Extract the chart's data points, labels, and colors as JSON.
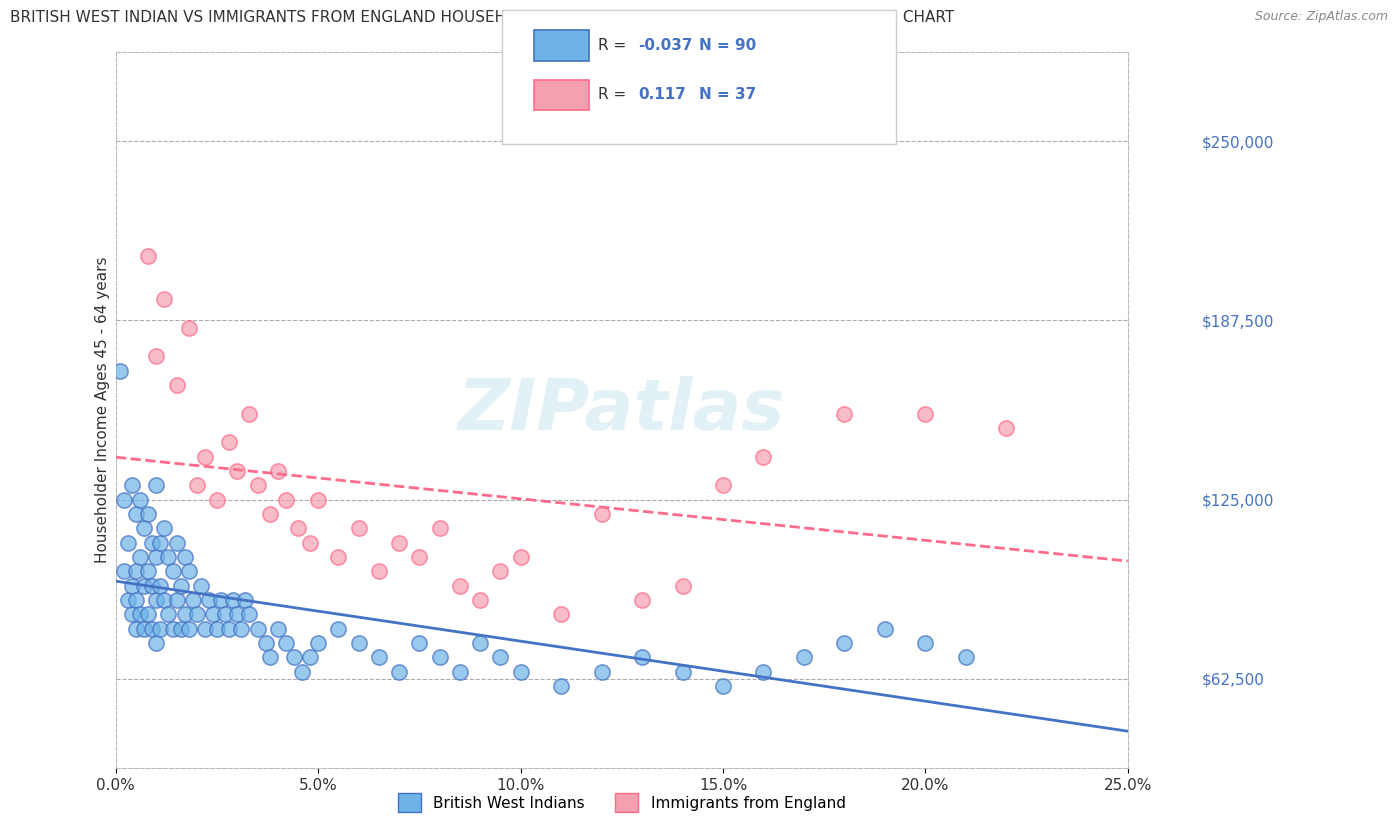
{
  "title": "BRITISH WEST INDIAN VS IMMIGRANTS FROM ENGLAND HOUSEHOLDER INCOME AGES 45 - 64 YEARS CORRELATION CHART",
  "source": "Source: ZipAtlas.com",
  "xlabel": "",
  "ylabel": "Householder Income Ages 45 - 64 years",
  "xlim": [
    0.0,
    0.25
  ],
  "ylim": [
    31250,
    281250
  ],
  "yticks": [
    62500,
    125000,
    187500,
    250000
  ],
  "ytick_labels": [
    "$62,500",
    "$125,000",
    "$187,500",
    "$250,000"
  ],
  "xticks": [
    0.0,
    0.05,
    0.1,
    0.15,
    0.2,
    0.25
  ],
  "xtick_labels": [
    "0.0%",
    "5.0%",
    "10.0%",
    "15.0%",
    "20.0%",
    "25.0%"
  ],
  "blue_R": -0.037,
  "blue_N": 90,
  "pink_R": 0.117,
  "pink_N": 37,
  "blue_color": "#6EB4E8",
  "pink_color": "#F4A0B0",
  "blue_line_color": "#4472C4",
  "pink_line_color": "#FF6B8A",
  "background_color": "#FFFFFF",
  "watermark": "ZIPatlas",
  "legend_label_blue": "British West Indians",
  "legend_label_pink": "Immigrants from England",
  "blue_scatter_x": [
    0.001,
    0.002,
    0.002,
    0.003,
    0.003,
    0.004,
    0.004,
    0.004,
    0.005,
    0.005,
    0.005,
    0.005,
    0.006,
    0.006,
    0.006,
    0.007,
    0.007,
    0.007,
    0.008,
    0.008,
    0.008,
    0.009,
    0.009,
    0.009,
    0.01,
    0.01,
    0.01,
    0.01,
    0.011,
    0.011,
    0.011,
    0.012,
    0.012,
    0.013,
    0.013,
    0.014,
    0.014,
    0.015,
    0.015,
    0.016,
    0.016,
    0.017,
    0.017,
    0.018,
    0.018,
    0.019,
    0.02,
    0.021,
    0.022,
    0.023,
    0.024,
    0.025,
    0.026,
    0.027,
    0.028,
    0.029,
    0.03,
    0.031,
    0.032,
    0.033,
    0.035,
    0.037,
    0.038,
    0.04,
    0.042,
    0.044,
    0.046,
    0.048,
    0.05,
    0.055,
    0.06,
    0.065,
    0.07,
    0.075,
    0.08,
    0.085,
    0.09,
    0.095,
    0.1,
    0.11,
    0.12,
    0.13,
    0.14,
    0.15,
    0.16,
    0.17,
    0.18,
    0.19,
    0.2,
    0.21
  ],
  "blue_scatter_y": [
    170000,
    125000,
    100000,
    110000,
    90000,
    130000,
    95000,
    85000,
    120000,
    100000,
    90000,
    80000,
    125000,
    105000,
    85000,
    115000,
    95000,
    80000,
    120000,
    100000,
    85000,
    110000,
    95000,
    80000,
    130000,
    105000,
    90000,
    75000,
    110000,
    95000,
    80000,
    115000,
    90000,
    105000,
    85000,
    100000,
    80000,
    110000,
    90000,
    95000,
    80000,
    105000,
    85000,
    100000,
    80000,
    90000,
    85000,
    95000,
    80000,
    90000,
    85000,
    80000,
    90000,
    85000,
    80000,
    90000,
    85000,
    80000,
    90000,
    85000,
    80000,
    75000,
    70000,
    80000,
    75000,
    70000,
    65000,
    70000,
    75000,
    80000,
    75000,
    70000,
    65000,
    75000,
    70000,
    65000,
    75000,
    70000,
    65000,
    60000,
    65000,
    70000,
    65000,
    60000,
    65000,
    70000,
    75000,
    80000,
    75000,
    70000
  ],
  "pink_scatter_x": [
    0.008,
    0.01,
    0.012,
    0.015,
    0.018,
    0.02,
    0.022,
    0.025,
    0.028,
    0.03,
    0.033,
    0.035,
    0.038,
    0.04,
    0.042,
    0.045,
    0.048,
    0.05,
    0.055,
    0.06,
    0.065,
    0.07,
    0.075,
    0.08,
    0.085,
    0.09,
    0.095,
    0.1,
    0.11,
    0.12,
    0.13,
    0.14,
    0.15,
    0.16,
    0.18,
    0.2,
    0.22
  ],
  "pink_scatter_y": [
    210000,
    175000,
    195000,
    165000,
    185000,
    130000,
    140000,
    125000,
    145000,
    135000,
    155000,
    130000,
    120000,
    135000,
    125000,
    115000,
    110000,
    125000,
    105000,
    115000,
    100000,
    110000,
    105000,
    115000,
    95000,
    90000,
    100000,
    105000,
    85000,
    120000,
    90000,
    95000,
    130000,
    140000,
    155000,
    155000,
    150000
  ]
}
